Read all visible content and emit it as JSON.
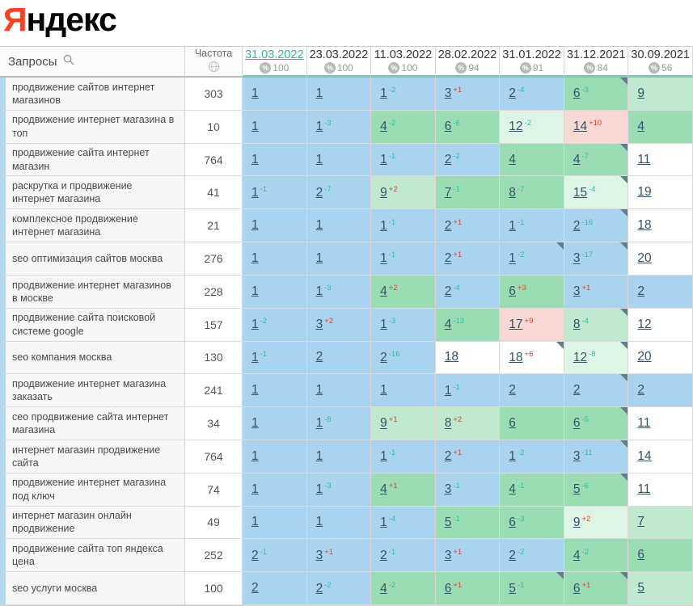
{
  "logo": {
    "first_letter": "Я",
    "rest": "ндекс"
  },
  "palette": {
    "logo_red": "#fc3f1d",
    "active_date_teal": "#2eb6a3",
    "delta_down_teal": "#2dbca4",
    "delta_up_red": "#e2432d",
    "position_link": "#33536b",
    "stripe_blue": "#b5d8ee",
    "marker_gray": "#5f7d8c",
    "cell_blue": "#a9d3ee",
    "cell_green": "#9cdcb4",
    "cell_green_light": "#c0e9cf",
    "cell_green_xlight": "#def4e6",
    "cell_pink": "#f8d8d4"
  },
  "icons": {
    "queries_header": "search-icon",
    "frequency_header": "globe-icon",
    "date_columns": "percent-badge-icon"
  },
  "table": {
    "queries_header": "Запросы",
    "frequency_header": "Частота",
    "columns": [
      {
        "date": "31.03.2022",
        "percent": "100",
        "active": true
      },
      {
        "date": "23.03.2022",
        "percent": "100",
        "active": false
      },
      {
        "date": "11.03.2022",
        "percent": "100",
        "active": false
      },
      {
        "date": "28.02.2022",
        "percent": "94",
        "active": false
      },
      {
        "date": "31.01.2022",
        "percent": "91",
        "active": false
      },
      {
        "date": "31.12.2021",
        "percent": "84",
        "active": false
      },
      {
        "date": "30.09.2021",
        "percent": "56",
        "active": false
      }
    ],
    "rows": [
      {
        "query": "продвижение сайтов интернет магазинов",
        "frequency": "303",
        "cells": [
          {
            "pos": "1",
            "delta": "",
            "bg": "blue",
            "marker": false
          },
          {
            "pos": "1",
            "delta": "",
            "bg": "blue",
            "marker": false
          },
          {
            "pos": "1",
            "delta": "-2",
            "bg": "blue",
            "marker": false
          },
          {
            "pos": "3",
            "delta": "+1",
            "bg": "blue",
            "marker": false
          },
          {
            "pos": "2",
            "delta": "-4",
            "bg": "blue",
            "marker": false
          },
          {
            "pos": "6",
            "delta": "-3",
            "bg": "green",
            "marker": true
          },
          {
            "pos": "9",
            "delta": "",
            "bg": "green-light",
            "marker": false
          }
        ]
      },
      {
        "query": "продвижение интернет магазина в топ",
        "frequency": "10",
        "cells": [
          {
            "pos": "1",
            "delta": "",
            "bg": "blue",
            "marker": false
          },
          {
            "pos": "1",
            "delta": "-3",
            "bg": "blue",
            "marker": false
          },
          {
            "pos": "4",
            "delta": "-2",
            "bg": "green",
            "marker": false
          },
          {
            "pos": "6",
            "delta": "-6",
            "bg": "green",
            "marker": false
          },
          {
            "pos": "12",
            "delta": "-2",
            "bg": "green-xlight",
            "marker": false
          },
          {
            "pos": "14",
            "delta": "+10",
            "bg": "pink",
            "marker": false
          },
          {
            "pos": "4",
            "delta": "",
            "bg": "green",
            "marker": false
          }
        ]
      },
      {
        "query": "продвижение сайта интернет магазин",
        "frequency": "764",
        "cells": [
          {
            "pos": "1",
            "delta": "",
            "bg": "blue",
            "marker": false
          },
          {
            "pos": "1",
            "delta": "",
            "bg": "blue",
            "marker": false
          },
          {
            "pos": "1",
            "delta": "-1",
            "bg": "blue",
            "marker": false
          },
          {
            "pos": "2",
            "delta": "-2",
            "bg": "blue",
            "marker": false
          },
          {
            "pos": "4",
            "delta": "",
            "bg": "green",
            "marker": false
          },
          {
            "pos": "4",
            "delta": "-7",
            "bg": "green",
            "marker": true
          },
          {
            "pos": "11",
            "delta": "",
            "bg": "white",
            "marker": false
          }
        ]
      },
      {
        "query": "раскрутка и продвижение интернет магазина",
        "frequency": "41",
        "cells": [
          {
            "pos": "1",
            "delta": "-1",
            "bg": "blue",
            "marker": false
          },
          {
            "pos": "2",
            "delta": "-7",
            "bg": "blue",
            "marker": false
          },
          {
            "pos": "9",
            "delta": "+2",
            "bg": "green-light",
            "marker": false
          },
          {
            "pos": "7",
            "delta": "-1",
            "bg": "green",
            "marker": false
          },
          {
            "pos": "8",
            "delta": "-7",
            "bg": "green",
            "marker": false
          },
          {
            "pos": "15",
            "delta": "-4",
            "bg": "green-xlight",
            "marker": true
          },
          {
            "pos": "19",
            "delta": "",
            "bg": "white",
            "marker": false
          }
        ]
      },
      {
        "query": "комплексное продвижение интернет магазина",
        "frequency": "21",
        "cells": [
          {
            "pos": "1",
            "delta": "",
            "bg": "blue",
            "marker": false
          },
          {
            "pos": "1",
            "delta": "",
            "bg": "blue",
            "marker": false
          },
          {
            "pos": "1",
            "delta": "-1",
            "bg": "blue",
            "marker": false
          },
          {
            "pos": "2",
            "delta": "+1",
            "bg": "blue",
            "marker": false
          },
          {
            "pos": "1",
            "delta": "-1",
            "bg": "blue",
            "marker": false
          },
          {
            "pos": "2",
            "delta": "-16",
            "bg": "blue",
            "marker": true
          },
          {
            "pos": "18",
            "delta": "",
            "bg": "white",
            "marker": false
          }
        ]
      },
      {
        "query": "seo оптимизация сайтов москва",
        "frequency": "276",
        "cells": [
          {
            "pos": "1",
            "delta": "",
            "bg": "blue",
            "marker": false
          },
          {
            "pos": "1",
            "delta": "",
            "bg": "blue",
            "marker": false
          },
          {
            "pos": "1",
            "delta": "-1",
            "bg": "blue",
            "marker": false
          },
          {
            "pos": "2",
            "delta": "+1",
            "bg": "blue",
            "marker": false
          },
          {
            "pos": "1",
            "delta": "-2",
            "bg": "blue",
            "marker": true
          },
          {
            "pos": "3",
            "delta": "-17",
            "bg": "blue",
            "marker": true
          },
          {
            "pos": "20",
            "delta": "",
            "bg": "white",
            "marker": false
          }
        ]
      },
      {
        "query": "продвижение интернет магазинов в москве",
        "frequency": "228",
        "cells": [
          {
            "pos": "1",
            "delta": "",
            "bg": "blue",
            "marker": false
          },
          {
            "pos": "1",
            "delta": "-3",
            "bg": "blue",
            "marker": false
          },
          {
            "pos": "4",
            "delta": "+2",
            "bg": "green",
            "marker": false
          },
          {
            "pos": "2",
            "delta": "-4",
            "bg": "blue",
            "marker": false
          },
          {
            "pos": "6",
            "delta": "+3",
            "bg": "green",
            "marker": false
          },
          {
            "pos": "3",
            "delta": "+1",
            "bg": "blue",
            "marker": false
          },
          {
            "pos": "2",
            "delta": "",
            "bg": "blue",
            "marker": false
          }
        ]
      },
      {
        "query": "продвижение сайта поисковой системе google",
        "frequency": "157",
        "cells": [
          {
            "pos": "1",
            "delta": "-2",
            "bg": "blue",
            "marker": false
          },
          {
            "pos": "3",
            "delta": "+2",
            "bg": "blue",
            "marker": false
          },
          {
            "pos": "1",
            "delta": "-3",
            "bg": "blue",
            "marker": false
          },
          {
            "pos": "4",
            "delta": "-13",
            "bg": "green",
            "marker": false
          },
          {
            "pos": "17",
            "delta": "+9",
            "bg": "pink",
            "marker": false
          },
          {
            "pos": "8",
            "delta": "-4",
            "bg": "green-light",
            "marker": true
          },
          {
            "pos": "12",
            "delta": "",
            "bg": "white",
            "marker": false
          }
        ]
      },
      {
        "query": "seo компания москва",
        "frequency": "130",
        "cells": [
          {
            "pos": "1",
            "delta": "-1",
            "bg": "blue",
            "marker": false
          },
          {
            "pos": "2",
            "delta": "",
            "bg": "blue",
            "marker": false
          },
          {
            "pos": "2",
            "delta": "-16",
            "bg": "blue",
            "marker": false
          },
          {
            "pos": "18",
            "delta": "",
            "bg": "white",
            "marker": false
          },
          {
            "pos": "18",
            "delta": "+6",
            "bg": "white",
            "marker": true
          },
          {
            "pos": "12",
            "delta": "-8",
            "bg": "green-xlight",
            "marker": true
          },
          {
            "pos": "20",
            "delta": "",
            "bg": "white",
            "marker": false
          }
        ]
      },
      {
        "query": "продвижение интернет магазина заказать",
        "frequency": "241",
        "cells": [
          {
            "pos": "1",
            "delta": "",
            "bg": "blue",
            "marker": false
          },
          {
            "pos": "1",
            "delta": "",
            "bg": "blue",
            "marker": false
          },
          {
            "pos": "1",
            "delta": "",
            "bg": "blue",
            "marker": false
          },
          {
            "pos": "1",
            "delta": "-1",
            "bg": "blue",
            "marker": false
          },
          {
            "pos": "2",
            "delta": "",
            "bg": "blue",
            "marker": false
          },
          {
            "pos": "2",
            "delta": "",
            "bg": "blue",
            "marker": true
          },
          {
            "pos": "2",
            "delta": "",
            "bg": "blue",
            "marker": false
          }
        ]
      },
      {
        "query": "сео продвижение сайта интернет магазина",
        "frequency": "34",
        "cells": [
          {
            "pos": "1",
            "delta": "",
            "bg": "blue",
            "marker": false
          },
          {
            "pos": "1",
            "delta": "-8",
            "bg": "blue",
            "marker": false
          },
          {
            "pos": "9",
            "delta": "+1",
            "bg": "green-light",
            "marker": false
          },
          {
            "pos": "8",
            "delta": "+2",
            "bg": "green-light",
            "marker": false
          },
          {
            "pos": "6",
            "delta": "",
            "bg": "green",
            "marker": false
          },
          {
            "pos": "6",
            "delta": "-5",
            "bg": "green",
            "marker": true
          },
          {
            "pos": "11",
            "delta": "",
            "bg": "white",
            "marker": false
          }
        ]
      },
      {
        "query": "интернет магазин продвижение сайта",
        "frequency": "764",
        "cells": [
          {
            "pos": "1",
            "delta": "",
            "bg": "blue",
            "marker": false
          },
          {
            "pos": "1",
            "delta": "",
            "bg": "blue",
            "marker": false
          },
          {
            "pos": "1",
            "delta": "-1",
            "bg": "blue",
            "marker": false
          },
          {
            "pos": "2",
            "delta": "+1",
            "bg": "blue",
            "marker": false
          },
          {
            "pos": "1",
            "delta": "-2",
            "bg": "blue",
            "marker": false
          },
          {
            "pos": "3",
            "delta": "-11",
            "bg": "blue",
            "marker": true
          },
          {
            "pos": "14",
            "delta": "",
            "bg": "white",
            "marker": false
          }
        ]
      },
      {
        "query": "продвижение интернет магазина под ключ",
        "frequency": "74",
        "cells": [
          {
            "pos": "1",
            "delta": "",
            "bg": "blue",
            "marker": false
          },
          {
            "pos": "1",
            "delta": "-3",
            "bg": "blue",
            "marker": false
          },
          {
            "pos": "4",
            "delta": "+1",
            "bg": "green",
            "marker": false
          },
          {
            "pos": "3",
            "delta": "-1",
            "bg": "blue",
            "marker": false
          },
          {
            "pos": "4",
            "delta": "-1",
            "bg": "green",
            "marker": false
          },
          {
            "pos": "5",
            "delta": "-6",
            "bg": "green",
            "marker": true
          },
          {
            "pos": "11",
            "delta": "",
            "bg": "white",
            "marker": false
          }
        ]
      },
      {
        "query": "интернет магазин онлайн продвижение",
        "frequency": "49",
        "cells": [
          {
            "pos": "1",
            "delta": "",
            "bg": "blue",
            "marker": false
          },
          {
            "pos": "1",
            "delta": "",
            "bg": "blue",
            "marker": false
          },
          {
            "pos": "1",
            "delta": "-4",
            "bg": "blue",
            "marker": false
          },
          {
            "pos": "5",
            "delta": "-1",
            "bg": "green",
            "marker": false
          },
          {
            "pos": "6",
            "delta": "-3",
            "bg": "green",
            "marker": false
          },
          {
            "pos": "9",
            "delta": "+2",
            "bg": "green-xlight",
            "marker": false
          },
          {
            "pos": "7",
            "delta": "",
            "bg": "green-light",
            "marker": false
          }
        ]
      },
      {
        "query": "продвижение сайта топ яндекса цена",
        "frequency": "252",
        "cells": [
          {
            "pos": "2",
            "delta": "-1",
            "bg": "blue",
            "marker": false
          },
          {
            "pos": "3",
            "delta": "+1",
            "bg": "blue",
            "marker": false
          },
          {
            "pos": "2",
            "delta": "-1",
            "bg": "blue",
            "marker": false
          },
          {
            "pos": "3",
            "delta": "+1",
            "bg": "blue",
            "marker": false
          },
          {
            "pos": "2",
            "delta": "-2",
            "bg": "blue",
            "marker": false
          },
          {
            "pos": "4",
            "delta": "-2",
            "bg": "green",
            "marker": false
          },
          {
            "pos": "6",
            "delta": "",
            "bg": "green",
            "marker": false
          }
        ]
      },
      {
        "query": "seo услуги москва",
        "frequency": "100",
        "cells": [
          {
            "pos": "2",
            "delta": "",
            "bg": "blue",
            "marker": false
          },
          {
            "pos": "2",
            "delta": "-2",
            "bg": "blue",
            "marker": false
          },
          {
            "pos": "4",
            "delta": "-2",
            "bg": "green",
            "marker": false
          },
          {
            "pos": "6",
            "delta": "+1",
            "bg": "green",
            "marker": false
          },
          {
            "pos": "5",
            "delta": "-1",
            "bg": "green",
            "marker": true
          },
          {
            "pos": "6",
            "delta": "+1",
            "bg": "green",
            "marker": true
          },
          {
            "pos": "5",
            "delta": "",
            "bg": "green-light",
            "marker": false
          }
        ]
      }
    ]
  }
}
